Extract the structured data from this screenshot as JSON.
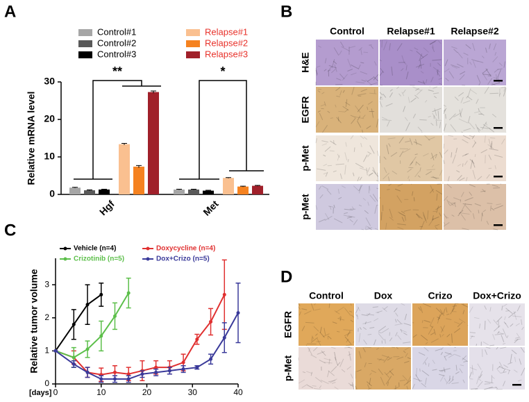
{
  "panel_labels": [
    "A",
    "B",
    "C",
    "D"
  ],
  "chart_data": [
    {
      "type": "bar",
      "y_label": "Relative mRNA level",
      "categories": [
        "Hgf",
        "Met"
      ],
      "series": [
        {
          "name": "Control#1",
          "color": "#a6a6a6",
          "label_color": "#000000",
          "values": [
            1.8,
            1.3
          ],
          "errors": [
            0.1,
            0.1
          ]
        },
        {
          "name": "Control#2",
          "color": "#595959",
          "label_color": "#000000",
          "values": [
            1.1,
            1.3
          ],
          "errors": [
            0.1,
            0.1
          ]
        },
        {
          "name": "Control#3",
          "color": "#000000",
          "label_color": "#000000",
          "values": [
            1.3,
            1.0
          ],
          "errors": [
            0.1,
            0.1
          ]
        },
        {
          "name": "Relapse#1",
          "color": "#fac090",
          "label_color": "#e8312a",
          "values": [
            13.4,
            4.4
          ],
          "errors": [
            0.2,
            0.1
          ]
        },
        {
          "name": "Relapse#2",
          "color": "#f58220",
          "label_color": "#e8312a",
          "values": [
            7.4,
            2.1
          ],
          "errors": [
            0.3,
            0.1
          ]
        },
        {
          "name": "Relapse#3",
          "color": "#a0202a",
          "label_color": "#e8312a",
          "values": [
            27.3,
            2.3
          ],
          "errors": [
            0.3,
            0.1
          ]
        }
      ],
      "ylim": [
        0,
        30
      ],
      "yticks": [
        0,
        10,
        20,
        30
      ],
      "annotations": [
        "**",
        "*"
      ]
    },
    {
      "type": "line",
      "y_label": "Relative tumor volume",
      "x_label": "[days]",
      "series": [
        {
          "name": "Vehicle (n=4)",
          "color": "#000000",
          "x": [
            0,
            4,
            7,
            10
          ],
          "values": [
            1,
            1.8,
            2.4,
            2.7
          ],
          "errors": [
            0,
            0.45,
            0.6,
            0.35
          ]
        },
        {
          "name": "Doxycycline (n=4)",
          "color": "#e03030",
          "x": [
            0,
            4,
            7,
            10,
            13,
            16,
            19,
            22,
            25,
            28,
            31,
            34,
            37
          ],
          "values": [
            1,
            0.8,
            0.35,
            0.28,
            0.35,
            0.3,
            0.4,
            0.5,
            0.5,
            0.65,
            1.35,
            1.88,
            2.7
          ],
          "errors": [
            0,
            0.2,
            0.15,
            0.2,
            0.2,
            0.2,
            0.3,
            0.2,
            0.2,
            0.25,
            0.15,
            0.4,
            1.05
          ]
        },
        {
          "name": "Crizotinib (n=5)",
          "color": "#5cbf4a",
          "x": [
            0,
            4,
            7,
            10,
            13,
            16
          ],
          "values": [
            1,
            0.8,
            1.05,
            1.45,
            2.05,
            2.75
          ],
          "errors": [
            0,
            0.3,
            0.25,
            0.45,
            0.4,
            0.45
          ]
        },
        {
          "name": "Dox+Crizo (n=5)",
          "color": "#3a3a9a",
          "x": [
            0,
            4,
            7,
            10,
            13,
            16,
            19,
            22,
            25,
            28,
            31,
            34,
            37,
            40
          ],
          "values": [
            1,
            0.6,
            0.35,
            0.15,
            0.15,
            0.15,
            0.3,
            0.35,
            0.4,
            0.45,
            0.5,
            0.75,
            1.4,
            2.15
          ],
          "errors": [
            0,
            0.1,
            0.15,
            0.1,
            0.1,
            0.1,
            0.1,
            0.1,
            0.1,
            0.1,
            0.05,
            0.15,
            0.45,
            0.9
          ]
        }
      ],
      "xlim": [
        0,
        40
      ],
      "xticks": [
        0,
        10,
        20,
        30,
        40
      ],
      "ylim": [
        0,
        3.8
      ],
      "yticks": [
        0,
        1,
        2,
        3
      ]
    }
  ],
  "image_grids": [
    {
      "columns": [
        "Control",
        "Relapse#1",
        "Relapse#2"
      ],
      "rows": [
        "H&E",
        "EGFR",
        "p-Met",
        "p-Met"
      ]
    },
    {
      "columns": [
        "Control",
        "Dox",
        "Crizo",
        "Dox+Crizo"
      ],
      "rows": [
        "EGFR",
        "p-Met"
      ]
    }
  ]
}
